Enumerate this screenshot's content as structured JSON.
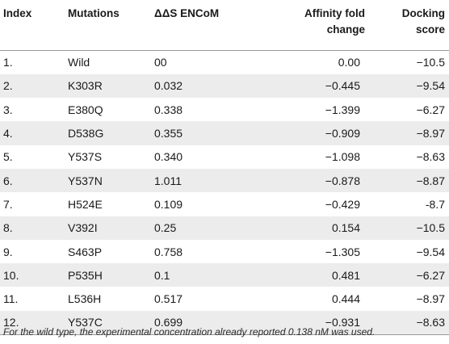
{
  "table": {
    "headers": {
      "index": "Index",
      "mutations": "Mutations",
      "encom": "ΔΔS ENCoM",
      "affinity_line1": "Affinity fold",
      "affinity_line2": "change",
      "docking_line1": "Docking",
      "docking_line2": "score"
    },
    "rows": [
      {
        "index": "1.",
        "mutation": "Wild",
        "encom": "00",
        "affinity": "0.00",
        "docking": "−10.5"
      },
      {
        "index": "2.",
        "mutation": "K303R",
        "encom": "0.032",
        "affinity": "−0.445",
        "docking": "−9.54"
      },
      {
        "index": "3.",
        "mutation": "E380Q",
        "encom": "0.338",
        "affinity": "−1.399",
        "docking": "−6.27"
      },
      {
        "index": "4.",
        "mutation": "D538G",
        "encom": "0.355",
        "affinity": "−0.909",
        "docking": "−8.97"
      },
      {
        "index": "5.",
        "mutation": "Y537S",
        "encom": "0.340",
        "affinity": "−1.098",
        "docking": "−8.63"
      },
      {
        "index": "6.",
        "mutation": "Y537N",
        "encom": "1.011",
        "affinity": "−0.878",
        "docking": "−8.87"
      },
      {
        "index": "7.",
        "mutation": "H524E",
        "encom": "0.109",
        "affinity": "−0.429",
        "docking": "-8.7"
      },
      {
        "index": "8.",
        "mutation": "V392I",
        "encom": "0.25",
        "affinity": "0.154",
        "docking": "−10.5"
      },
      {
        "index": "9.",
        "mutation": "S463P",
        "encom": "0.758",
        "affinity": "−1.305",
        "docking": "−9.54"
      },
      {
        "index": "10.",
        "mutation": "P535H",
        "encom": "0.1",
        "affinity": "0.481",
        "docking": "−6.27"
      },
      {
        "index": "11.",
        "mutation": "L536H",
        "encom": "0.517",
        "affinity": "0.444",
        "docking": "−8.97"
      },
      {
        "index": "12.",
        "mutation": "Y537C",
        "encom": "0.699",
        "affinity": "−0.931",
        "docking": "−8.63"
      }
    ]
  },
  "footnote": "For the wild type, the experimental concentration already reported 0.138 nM was used."
}
